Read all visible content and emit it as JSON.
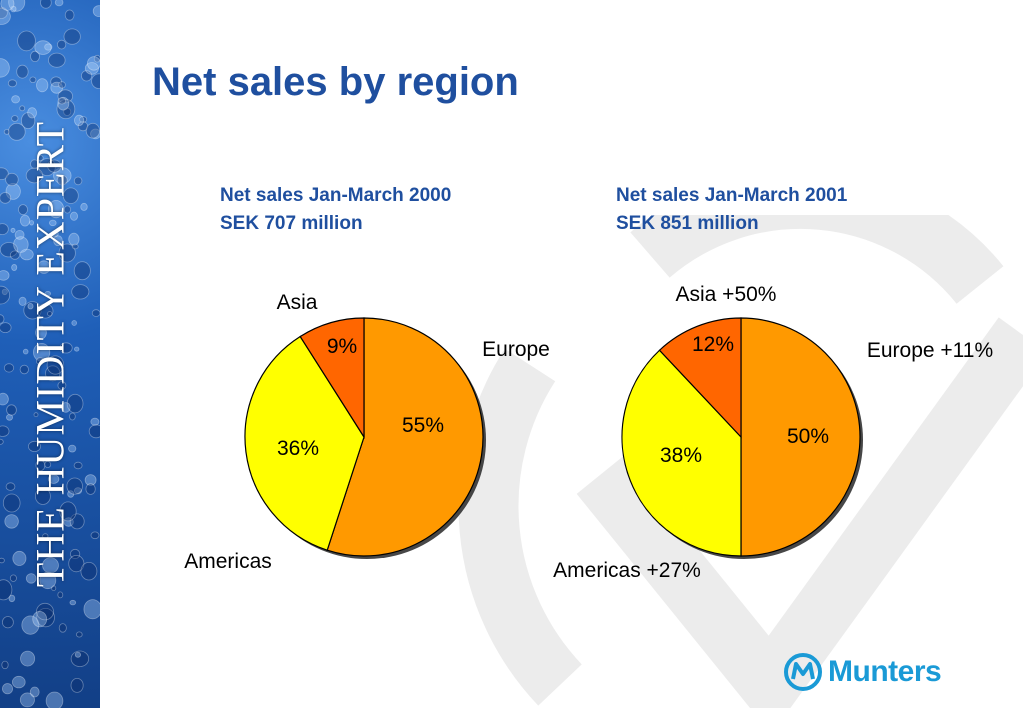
{
  "sidebar": {
    "brand_text": "THE HUMIDITY EXPERT"
  },
  "page": {
    "title": "Net sales by region"
  },
  "charts": [
    {
      "subtitle_line1": "Net sales Jan-March 2000",
      "subtitle_line2": "SEK 707 million"
    },
    {
      "subtitle_line1": "Net sales Jan-March 2001",
      "subtitle_line2": "SEK 851 million"
    }
  ],
  "chart_data": [
    {
      "type": "pie",
      "title": "Net sales Jan-March 2000",
      "subtitle": "SEK 707 million",
      "slices": [
        {
          "label": "Europe",
          "value": 55,
          "value_label": "55%",
          "color": "#FF9900"
        },
        {
          "label": "Americas",
          "value": 36,
          "value_label": "36%",
          "color": "#FFFF00"
        },
        {
          "label": "Asia",
          "value": 9,
          "value_label": "9%",
          "color": "#FF6600"
        }
      ]
    },
    {
      "type": "pie",
      "title": "Net sales Jan-March 2001",
      "subtitle": "SEK 851 million",
      "slices": [
        {
          "label": "Europe +11%",
          "value": 50,
          "value_label": "50%",
          "color": "#FF9900"
        },
        {
          "label": "Americas +27%",
          "value": 38,
          "value_label": "38%",
          "color": "#FFFF00"
        },
        {
          "label": "Asia +50%",
          "value": 12,
          "value_label": "12%",
          "color": "#FF6600"
        }
      ]
    }
  ],
  "logo": {
    "text": "Munters"
  }
}
